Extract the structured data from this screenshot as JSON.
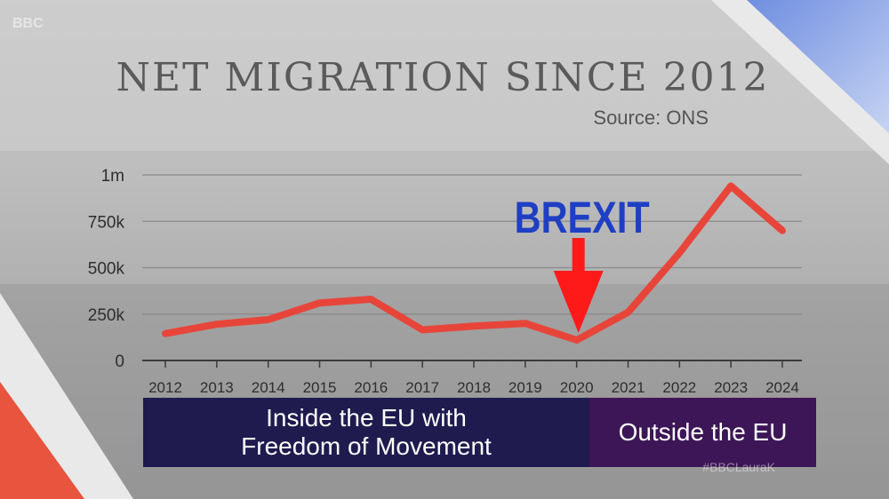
{
  "overlay": {
    "brexit_label": "BREXIT",
    "band_inside": "Inside the EU with Freedom of Movement",
    "band_outside": "Outside the EU",
    "hashtag": "#BBCLauraK",
    "logo": "BBC"
  },
  "colors": {
    "line": "#e8453a",
    "brexit_text": "#1e3fc4",
    "arrow": "#ff1a1a",
    "band_inside": "#1f1b4f",
    "band_outside": "#3c1656"
  },
  "chart_data": {
    "type": "line",
    "title": "NET MIGRATION SINCE 2012",
    "source": "Source: ONS",
    "x": [
      "2012",
      "2013",
      "2014",
      "2015",
      "2016",
      "2017",
      "2018",
      "2019",
      "2020",
      "2021",
      "2022",
      "2023",
      "2024"
    ],
    "series": [
      {
        "values": [
          145,
          195,
          220,
          310,
          330,
          165,
          185,
          200,
          110,
          260,
          580,
          940,
          700
        ]
      }
    ],
    "y_ticks": [
      {
        "value": 0,
        "label": "0"
      },
      {
        "value": 250,
        "label": "250k"
      },
      {
        "value": 500,
        "label": "500k"
      },
      {
        "value": 750,
        "label": "750k"
      },
      {
        "value": 1000,
        "label": "1m"
      }
    ],
    "ylim": [
      0,
      1000
    ],
    "grid": true,
    "annotation": {
      "label": "BREXIT",
      "x": "2020"
    }
  }
}
